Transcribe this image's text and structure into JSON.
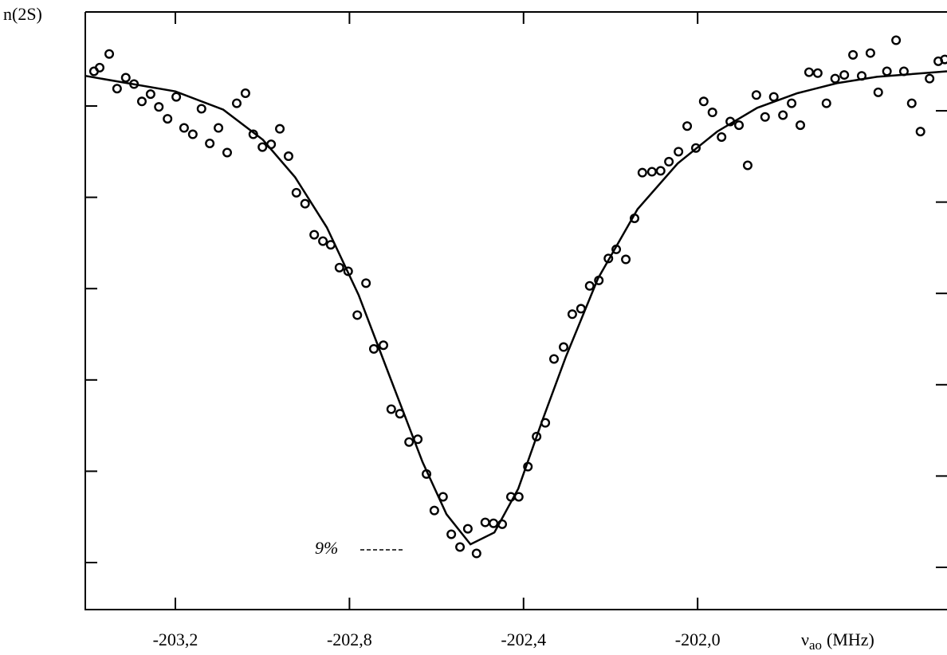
{
  "chart_data": {
    "type": "scatter",
    "ylabel": "n(2S)",
    "xlabel_symbol": "ν",
    "xlabel_subscript": "ao",
    "xlabel_unit": "(MHz)",
    "annotation": "9%",
    "xlim": [
      -203.407,
      -201.427
    ],
    "ylim": [
      0.485,
      7.03
    ],
    "xticks": [
      {
        "value": -203.2,
        "label": "-203,2"
      },
      {
        "value": -202.8,
        "label": "-202,8"
      },
      {
        "value": -202.4,
        "label": "-202,4"
      },
      {
        "value": -202.0,
        "label": "-202,0"
      }
    ],
    "yticks": [
      1,
      2,
      3,
      4,
      5,
      6
    ],
    "color": "#000000",
    "x": [
      -203.387,
      -203.374,
      -203.352,
      -203.334,
      -203.314,
      -203.295,
      -203.277,
      -203.257,
      -203.238,
      -203.218,
      -203.198,
      -203.18,
      -203.16,
      -203.14,
      -203.121,
      -203.101,
      -203.081,
      -203.059,
      -203.039,
      -203.021,
      -203.0,
      -202.98,
      -202.96,
      -202.94,
      -202.922,
      -202.902,
      -202.881,
      -202.861,
      -202.843,
      -202.823,
      -202.803,
      -202.782,
      -202.762,
      -202.744,
      -202.722,
      -202.704,
      -202.684,
      -202.663,
      -202.643,
      -202.623,
      -202.605,
      -202.585,
      -202.566,
      -202.546,
      -202.528,
      -202.508,
      -202.488,
      -202.469,
      -202.449,
      -202.429,
      -202.411,
      -202.39,
      -202.37,
      -202.35,
      -202.33,
      -202.308,
      -202.288,
      -202.268,
      -202.248,
      -202.227,
      -202.205,
      -202.187,
      -202.165,
      -202.145,
      -202.127,
      -202.105,
      -202.085,
      -202.066,
      -202.044,
      -202.024,
      -202.004,
      -201.986,
      -201.966,
      -201.945,
      -201.925,
      -201.905,
      -201.885,
      -201.865,
      -201.845,
      -201.825,
      -201.804,
      -201.784,
      -201.764,
      -201.744,
      -201.724,
      -201.704,
      -201.684,
      -201.663,
      -201.643,
      -201.623,
      -201.603,
      -201.585,
      -201.565,
      -201.544,
      -201.526,
      -201.508,
      -201.488,
      -201.467,
      -201.447,
      -201.432
    ],
    "values": [
      6.38,
      6.42,
      6.57,
      6.19,
      6.31,
      6.24,
      6.05,
      6.13,
      5.99,
      5.86,
      6.1,
      5.76,
      5.69,
      5.97,
      5.59,
      5.76,
      5.49,
      6.03,
      6.14,
      5.69,
      5.55,
      5.58,
      5.75,
      5.45,
      5.05,
      4.93,
      4.59,
      4.52,
      4.48,
      4.23,
      4.19,
      3.71,
      4.06,
      3.34,
      3.38,
      2.68,
      2.63,
      2.32,
      2.35,
      1.97,
      1.57,
      1.72,
      1.31,
      1.17,
      1.37,
      1.1,
      1.44,
      1.43,
      1.42,
      1.72,
      1.72,
      2.05,
      2.38,
      2.53,
      3.23,
      3.36,
      3.72,
      3.78,
      4.03,
      4.09,
      4.33,
      4.43,
      4.32,
      4.77,
      5.27,
      5.28,
      5.29,
      5.39,
      5.5,
      5.78,
      5.54,
      6.05,
      5.93,
      5.66,
      5.83,
      5.79,
      5.35,
      6.12,
      5.88,
      6.1,
      5.9,
      6.03,
      5.79,
      6.37,
      6.36,
      6.03,
      6.3,
      6.34,
      6.56,
      6.33,
      6.58,
      6.15,
      6.38,
      6.72,
      6.38,
      6.03,
      5.72,
      6.3,
      6.49,
      6.51
    ],
    "fit": {
      "x": [
        -203.407,
        -203.31,
        -203.2,
        -203.09,
        -202.999,
        -202.925,
        -202.852,
        -202.779,
        -202.706,
        -202.632,
        -202.577,
        -202.522,
        -202.467,
        -202.412,
        -202.358,
        -202.303,
        -202.229,
        -202.138,
        -202.046,
        -201.955,
        -201.863,
        -201.771,
        -201.68,
        -201.588,
        -201.427
      ],
      "values": [
        6.33,
        6.25,
        6.16,
        5.96,
        5.63,
        5.22,
        4.67,
        3.93,
        3.02,
        2.1,
        1.53,
        1.2,
        1.33,
        1.81,
        2.54,
        3.25,
        4.11,
        4.87,
        5.37,
        5.72,
        5.98,
        6.14,
        6.25,
        6.32,
        6.38
      ]
    }
  }
}
